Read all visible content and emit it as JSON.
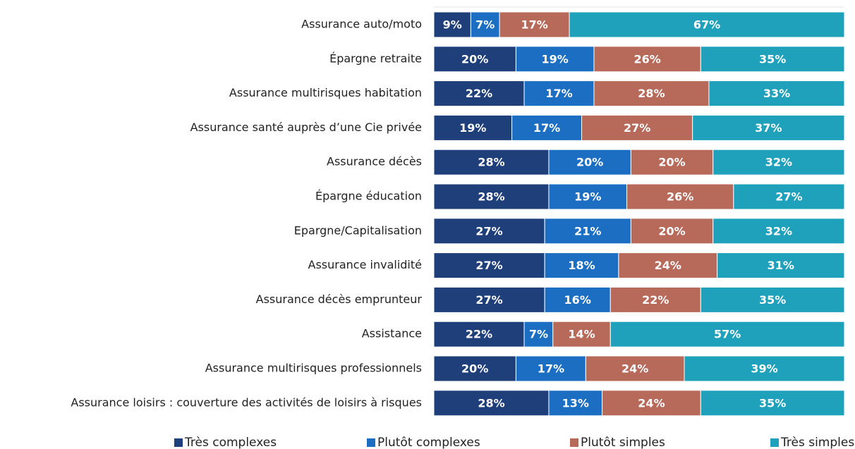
{
  "chart_data": {
    "type": "stacked_bar_horizontal",
    "categories": [
      "Assurance auto/moto",
      "Épargne retraite",
      "Assurance multirisques habitation",
      "Assurance santé auprès d’une Cie privée",
      "Assurance décès",
      "Épargne éducation",
      "Epargne/Capitalisation",
      "Assurance invalidité",
      "Assurance décès emprunteur",
      "Assistance",
      "Assurance multirisques professionnels",
      "Assurance loisirs : couverture des activités de loisirs à risques"
    ],
    "series": [
      {
        "name": "Très complexes",
        "color": "#1f3f7a",
        "values": [
          9,
          20,
          22,
          19,
          28,
          28,
          27,
          27,
          27,
          22,
          20,
          28
        ],
        "value_labels": [
          "9%",
          "20%",
          "22%",
          "19%",
          "28%",
          "28%",
          "27%",
          "27%",
          "27%",
          "22%",
          "20%",
          "28%"
        ]
      },
      {
        "name": "Plutôt complexes",
        "color": "#1b6ec2",
        "values": [
          7,
          19,
          17,
          17,
          20,
          19,
          21,
          18,
          16,
          7,
          17,
          13
        ],
        "value_labels": [
          "7%",
          "19%",
          "17%",
          "17%",
          "20%",
          "19%",
          "21%",
          "18%",
          "16%",
          "7%",
          "17%",
          "13%"
        ]
      },
      {
        "name": "Plutôt simples",
        "color": "#b7695a",
        "values": [
          17,
          26,
          28,
          27,
          20,
          26,
          20,
          24,
          22,
          14,
          24,
          24
        ],
        "value_labels": [
          "17%",
          "26%",
          "28%",
          "27%",
          "20%",
          "26%",
          "20%",
          "24%",
          "22%",
          "14%",
          "24%",
          "24%"
        ]
      },
      {
        "name": "Très simples",
        "color": "#20a1bb",
        "values": [
          67,
          35,
          33,
          37,
          32,
          27,
          32,
          31,
          35,
          57,
          39,
          35
        ],
        "value_labels": [
          "67%",
          "35%",
          "33%",
          "37%",
          "32%",
          "27%",
          "32%",
          "31%",
          "35%",
          "57%",
          "39%",
          "35%"
        ]
      }
    ],
    "xlim": [
      0,
      100
    ],
    "legend": "bottom"
  }
}
